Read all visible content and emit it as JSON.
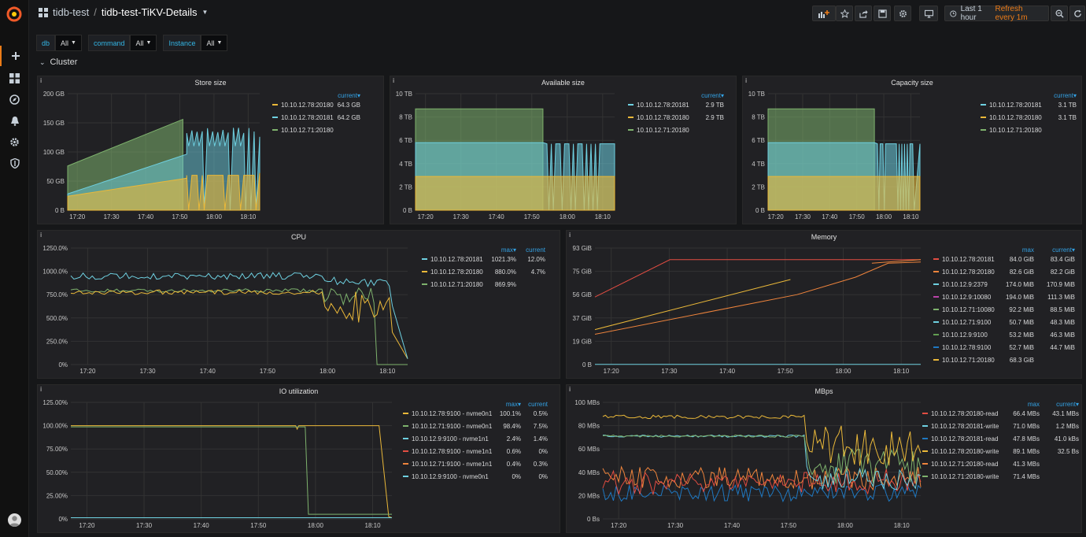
{
  "header": {
    "folder": "tidb-test",
    "dashboard": "tidb-test-TiKV-Details",
    "time_range": "Last 1 hour",
    "refresh": "Refresh every 1m"
  },
  "colors": {
    "yellow": "#eab839",
    "green": "#7eb26d",
    "cyan": "#6ed0e0",
    "orange": "#ef843c",
    "red": "#e24d42",
    "blue": "#1f78c1",
    "purple": "#ba43a9",
    "accent": "#eb7b18"
  },
  "variables": [
    {
      "label": "db",
      "value": "All"
    },
    {
      "label": "command",
      "value": "All"
    },
    {
      "label": "Instance",
      "value": "All"
    }
  ],
  "row": {
    "title": "Cluster"
  },
  "panels": {
    "store_size": {
      "title": "Store size",
      "headers": {
        "current": "current▾"
      },
      "legend": [
        {
          "name": "10.10.12.78:20180",
          "current": "64.3 GB",
          "color": "#eab839"
        },
        {
          "name": "10.10.12.78:20181",
          "current": "64.2 GB",
          "color": "#6ed0e0"
        },
        {
          "name": "10.10.12.71:20180",
          "current": "",
          "color": "#7eb26d"
        }
      ],
      "yticks": [
        "200 GB",
        "150 GB",
        "100 GB",
        "50 GB",
        "0 B"
      ],
      "xticks": [
        "17:20",
        "17:30",
        "17:40",
        "17:50",
        "18:00",
        "18:10"
      ]
    },
    "available_size": {
      "title": "Available size",
      "headers": {
        "current": "current▾"
      },
      "legend": [
        {
          "name": "10.10.12.78:20181",
          "current": "2.9 TB",
          "color": "#6ed0e0"
        },
        {
          "name": "10.10.12.78:20180",
          "current": "2.9 TB",
          "color": "#eab839"
        },
        {
          "name": "10.10.12.71:20180",
          "current": "",
          "color": "#7eb26d"
        }
      ],
      "yticks": [
        "10 TB",
        "8 TB",
        "6 TB",
        "4 TB",
        "2 TB",
        "0 B"
      ],
      "xticks": [
        "17:20",
        "17:30",
        "17:40",
        "17:50",
        "18:00",
        "18:10"
      ]
    },
    "capacity_size": {
      "title": "Capacity size",
      "headers": {
        "current": "current▾"
      },
      "legend": [
        {
          "name": "10.10.12.78:20181",
          "current": "3.1 TB",
          "color": "#6ed0e0"
        },
        {
          "name": "10.10.12.78:20180",
          "current": "3.1 TB",
          "color": "#eab839"
        },
        {
          "name": "10.10.12.71:20180",
          "current": "",
          "color": "#7eb26d"
        }
      ],
      "yticks": [
        "10 TB",
        "8 TB",
        "6 TB",
        "4 TB",
        "2 TB",
        "0 B"
      ],
      "xticks": [
        "17:20",
        "17:30",
        "17:40",
        "17:50",
        "18:00",
        "18:10"
      ]
    },
    "cpu": {
      "title": "CPU",
      "headers": {
        "max": "max▾",
        "current": "current"
      },
      "legend": [
        {
          "name": "10.10.12.78:20181",
          "max": "1021.3%",
          "current": "12.0%",
          "color": "#6ed0e0"
        },
        {
          "name": "10.10.12.78:20180",
          "max": "880.0%",
          "current": "4.7%",
          "color": "#eab839"
        },
        {
          "name": "10.10.12.71:20180",
          "max": "869.9%",
          "current": "",
          "color": "#7eb26d"
        }
      ],
      "yticks": [
        "1250.0%",
        "1000.0%",
        "750.0%",
        "500.0%",
        "250.0%",
        "0%"
      ],
      "xticks": [
        "17:20",
        "17:30",
        "17:40",
        "17:50",
        "18:00",
        "18:10"
      ]
    },
    "memory": {
      "title": "Memory",
      "headers": {
        "max": "max",
        "current": "current▾"
      },
      "legend": [
        {
          "name": "10.10.12.78:20181",
          "max": "84.0 GiB",
          "current": "83.4 GiB",
          "color": "#e24d42"
        },
        {
          "name": "10.10.12.78:20180",
          "max": "82.6 GiB",
          "current": "82.2 GiB",
          "color": "#ef843c"
        },
        {
          "name": "10.10.12.9:2379",
          "max": "174.0 MiB",
          "current": "170.9 MiB",
          "color": "#6ed0e0"
        },
        {
          "name": "10.10.12.9:10080",
          "max": "194.0 MiB",
          "current": "111.3 MiB",
          "color": "#ba43a9"
        },
        {
          "name": "10.10.12.71:10080",
          "max": "92.2 MiB",
          "current": "88.5 MiB",
          "color": "#7eb26d"
        },
        {
          "name": "10.10.12.71:9100",
          "max": "50.7 MiB",
          "current": "48.3 MiB",
          "color": "#6ed0e0"
        },
        {
          "name": "10.10.12.9:9100",
          "max": "53.2 MiB",
          "current": "46.3 MiB",
          "color": "#629e51"
        },
        {
          "name": "10.10.12.78:9100",
          "max": "52.7 MiB",
          "current": "44.7 MiB",
          "color": "#1f78c1"
        },
        {
          "name": "10.10.12.71:20180",
          "max": "68.3 GiB",
          "current": "",
          "color": "#eab839"
        }
      ],
      "yticks": [
        "93 GiB",
        "75 GiB",
        "56 GiB",
        "37 GiB",
        "19 GiB",
        "0 B"
      ],
      "xticks": [
        "17:20",
        "17:30",
        "17:40",
        "17:50",
        "18:00",
        "18:10"
      ]
    },
    "io": {
      "title": "IO utilization",
      "headers": {
        "max": "max▾",
        "current": "current"
      },
      "legend": [
        {
          "name": "10.10.12.78:9100 - nvme0n1",
          "max": "100.1%",
          "current": "0.5%",
          "color": "#eab839"
        },
        {
          "name": "10.10.12.71:9100 - nvme0n1",
          "max": "98.4%",
          "current": "7.5%",
          "color": "#7eb26d"
        },
        {
          "name": "10.10.12.9:9100 - nvme1n1",
          "max": "2.4%",
          "current": "1.4%",
          "color": "#6ed0e0"
        },
        {
          "name": "10.10.12.78:9100 - nvme1n1",
          "max": "0.6%",
          "current": "0%",
          "color": "#e24d42"
        },
        {
          "name": "10.10.12.71:9100 - nvme1n1",
          "max": "0.4%",
          "current": "0.3%",
          "color": "#ef843c"
        },
        {
          "name": "10.10.12.9:9100 - nvme0n1",
          "max": "0%",
          "current": "0%",
          "color": "#6ed0e0"
        }
      ],
      "yticks": [
        "125.00%",
        "100.00%",
        "75.00%",
        "50.00%",
        "25.00%",
        "0%"
      ],
      "xticks": [
        "17:20",
        "17:30",
        "17:40",
        "17:50",
        "18:00",
        "18:10"
      ]
    },
    "mbps": {
      "title": "MBps",
      "headers": {
        "max": "max",
        "current": "current▾"
      },
      "legend": [
        {
          "name": "10.10.12.78:20180-read",
          "max": "66.4 MBs",
          "current": "43.1 MBs",
          "color": "#e24d42"
        },
        {
          "name": "10.10.12.78:20181-write",
          "max": "71.0 MBs",
          "current": "1.2 MBs",
          "color": "#6ed0e0"
        },
        {
          "name": "10.10.12.78:20181-read",
          "max": "47.8 MBs",
          "current": "41.0 kBs",
          "color": "#1f78c1"
        },
        {
          "name": "10.10.12.78:20180-write",
          "max": "89.1 MBs",
          "current": "32.5 Bs",
          "color": "#eab839"
        },
        {
          "name": "10.10.12.71:20180-read",
          "max": "41.3 MBs",
          "current": "",
          "color": "#ef843c"
        },
        {
          "name": "10.10.12.71:20180-write",
          "max": "71.4 MBs",
          "current": "",
          "color": "#7eb26d"
        }
      ],
      "yticks": [
        "100 MBs",
        "80 MBs",
        "60 MBs",
        "40 MBs",
        "20 MBs",
        "0 Bs"
      ],
      "xticks": [
        "17:20",
        "17:30",
        "17:40",
        "17:50",
        "18:00",
        "18:10"
      ]
    }
  }
}
